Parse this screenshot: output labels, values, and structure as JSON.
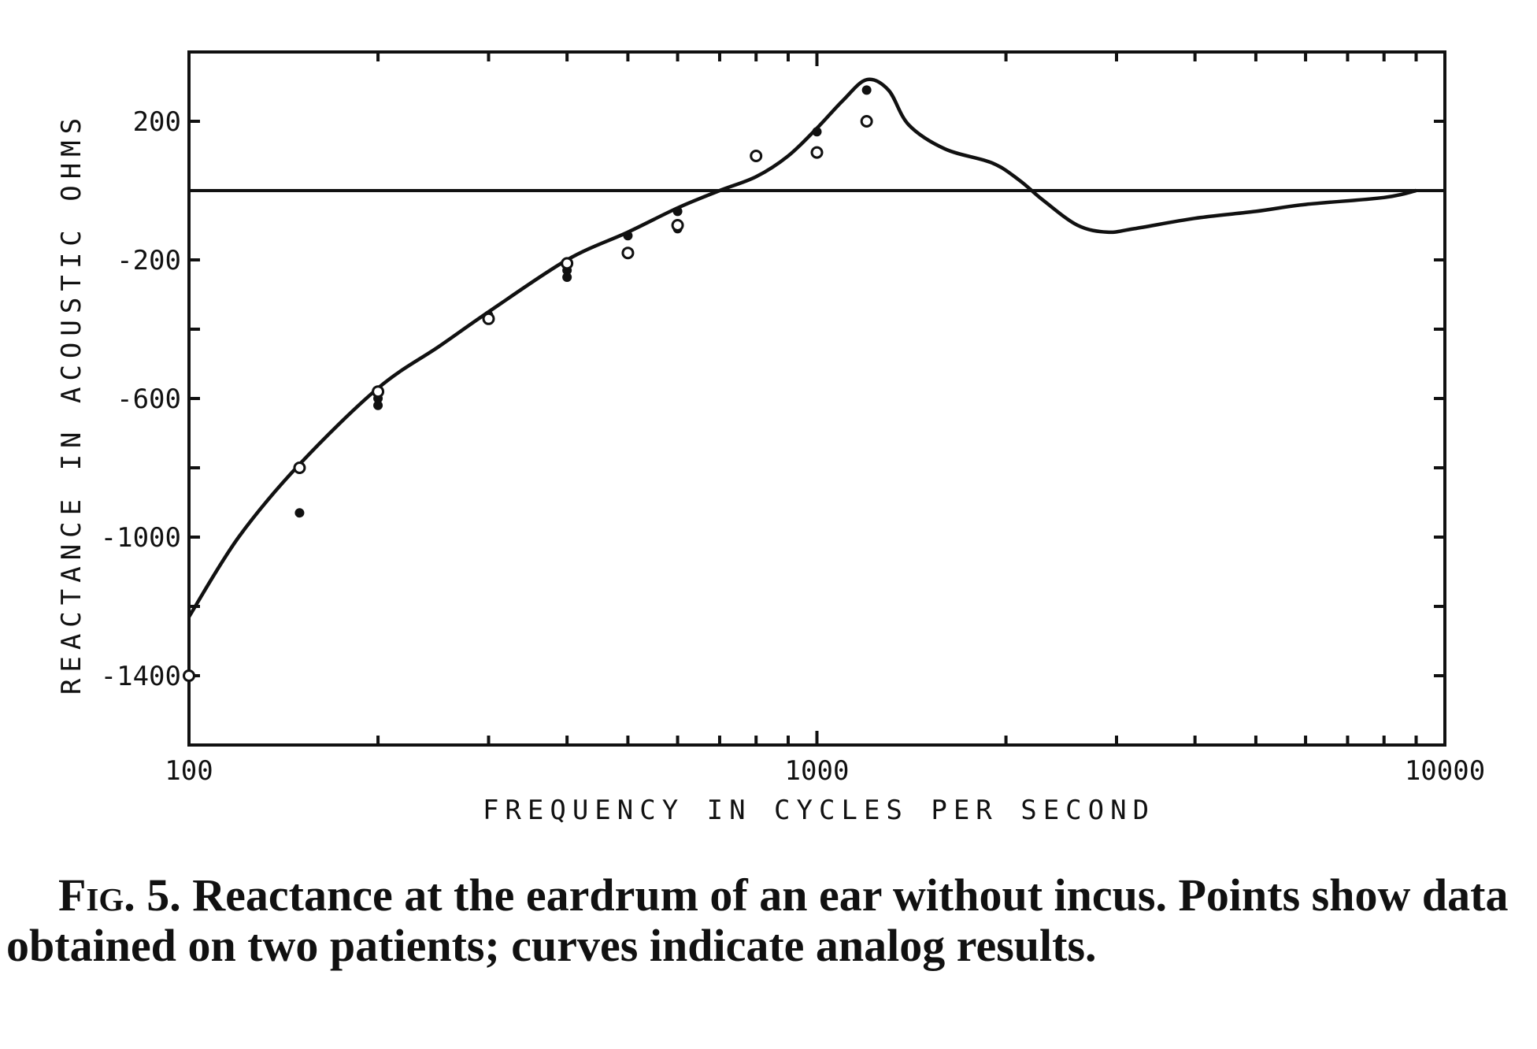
{
  "chart_data": {
    "type": "line",
    "title": "",
    "xlabel": "FREQUENCY IN CYCLES PER SECOND",
    "ylabel": "REACTANCE IN ACOUSTIC OHMS",
    "x_scale": "log",
    "xlim": [
      100,
      10000
    ],
    "ylim": [
      -1600,
      400
    ],
    "x_ticks": [
      100,
      1000,
      10000
    ],
    "x_tick_labels": [
      "100",
      "1000",
      "10000"
    ],
    "y_ticks": [
      200,
      -200,
      -600,
      -1000,
      -1400
    ],
    "y_tick_labels": [
      "200",
      "-200",
      "-600",
      "-1000",
      "-1400"
    ],
    "reference_line_y": 0,
    "grid": false,
    "series": [
      {
        "kind": "curve",
        "x": [
          100,
          120,
          150,
          200,
          250,
          300,
          400,
          500,
          600,
          700,
          800,
          900,
          1000,
          1100,
          1200,
          1300,
          1400,
          1600,
          1900,
          2100,
          2300,
          2600,
          2900,
          3200,
          4000,
          5000,
          6000,
          8000,
          9000
        ],
        "y": [
          -1230,
          -1000,
          -790,
          -570,
          -450,
          -350,
          -200,
          -120,
          -50,
          0,
          40,
          100,
          180,
          260,
          320,
          290,
          190,
          120,
          80,
          30,
          -30,
          -100,
          -120,
          -110,
          -80,
          -60,
          -40,
          -20,
          0
        ]
      },
      {
        "kind": "points",
        "name": "",
        "marker": "filled",
        "x": [
          150,
          200,
          200,
          300,
          400,
          400,
          500,
          600,
          600,
          800,
          1000,
          1200
        ],
        "y": [
          -930,
          -600,
          -620,
          -360,
          -230,
          -250,
          -130,
          -60,
          -110,
          100,
          170,
          290
        ]
      },
      {
        "kind": "points",
        "name": "",
        "marker": "open",
        "x": [
          100,
          150,
          200,
          300,
          400,
          500,
          600,
          800,
          1000,
          1200
        ],
        "y": [
          -1400,
          -800,
          -580,
          -370,
          -210,
          -180,
          -100,
          100,
          110,
          200
        ]
      }
    ]
  },
  "caption": {
    "label": "Fig. 5.",
    "text": "Reactance at the eardrum of an ear without incus. Points show data obtained on two patients; curves indicate analog results."
  }
}
